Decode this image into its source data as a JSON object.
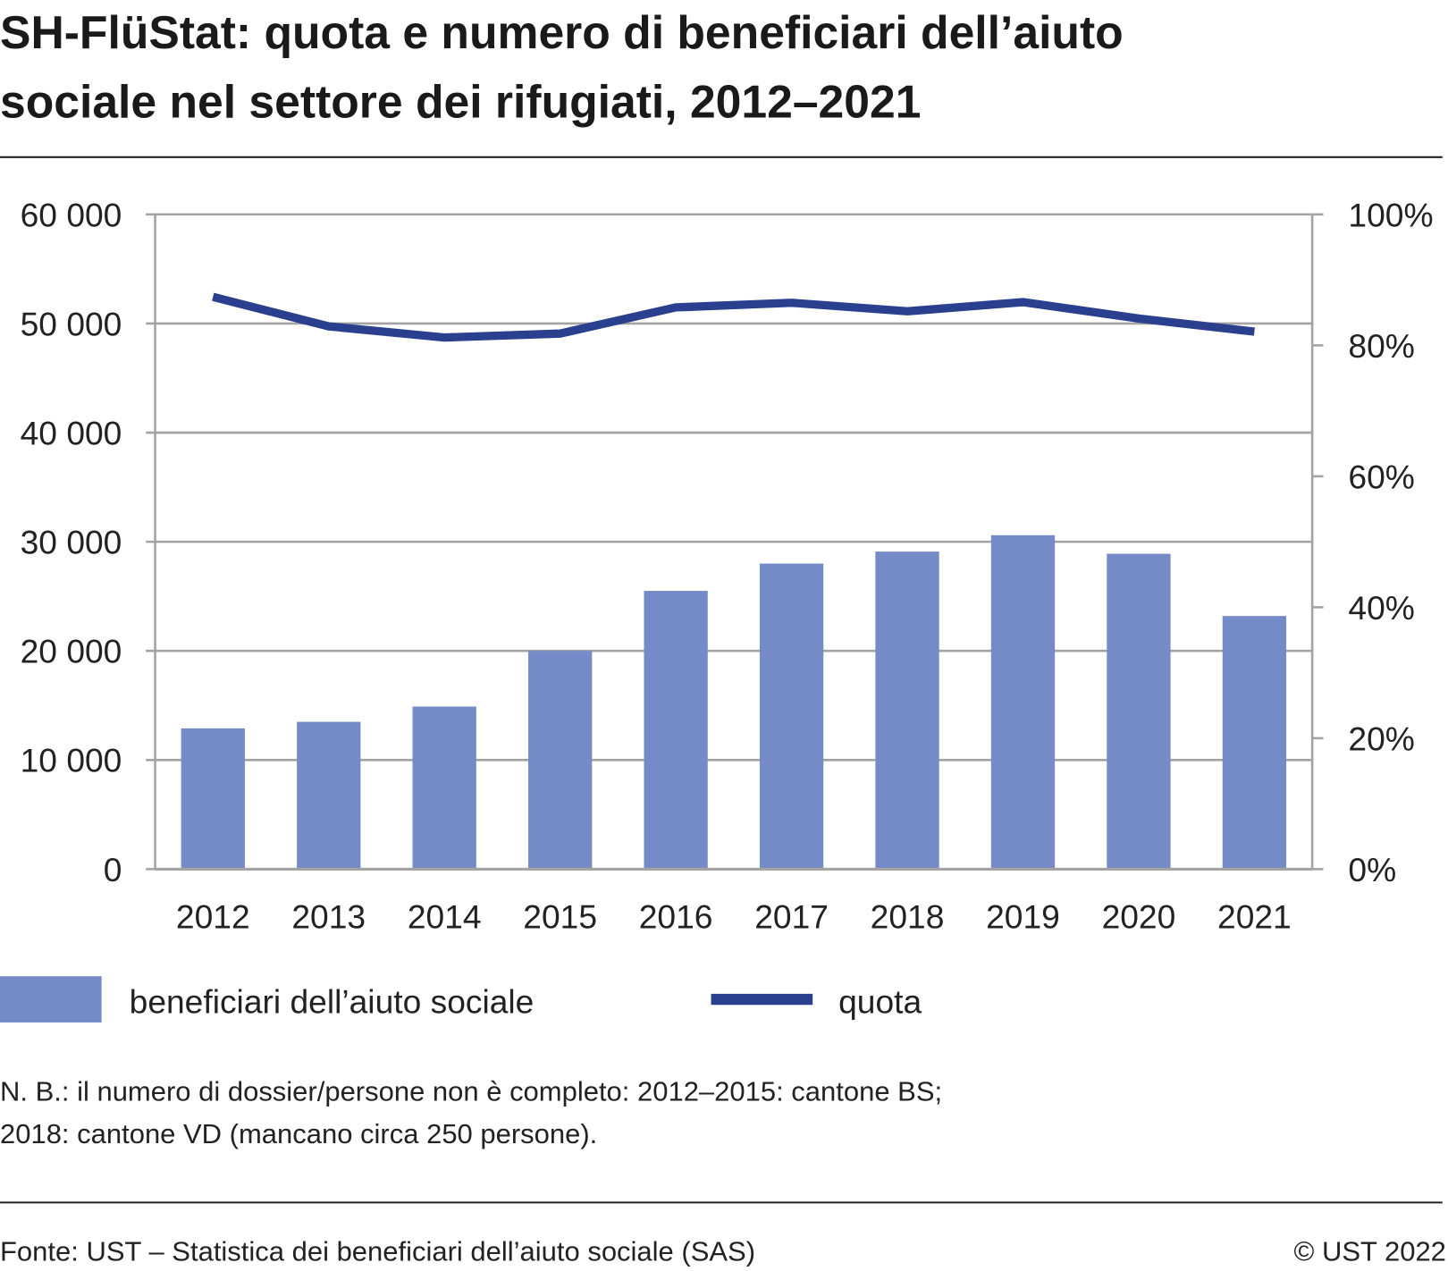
{
  "chart_data": {
    "type": "bar+line",
    "title_lines": [
      "SH-FlüStat: quota e numero di beneficiari dell’aiuto",
      "sociale nel settore dei rifugiati, 2012–2021"
    ],
    "categories": [
      "2012",
      "2013",
      "2014",
      "2015",
      "2016",
      "2017",
      "2018",
      "2019",
      "2020",
      "2021"
    ],
    "series": [
      {
        "name": "beneficiari dell’aiuto sociale",
        "type": "bar",
        "axis": "left",
        "color": "#758bc7",
        "values": [
          12900,
          13500,
          14900,
          20000,
          25500,
          28000,
          29100,
          30600,
          28900,
          23200
        ]
      },
      {
        "name": "quota",
        "type": "line",
        "axis": "right",
        "color": "#2b3f8f",
        "values": [
          87.4,
          82.9,
          81.2,
          81.8,
          85.8,
          86.5,
          85.2,
          86.6,
          84.1,
          82.1
        ]
      }
    ],
    "ylim_left": [
      0,
      60000
    ],
    "yticks_left": [
      "0",
      "10 000",
      "20 000",
      "30 000",
      "40 000",
      "50 000",
      "60 000"
    ],
    "ylim_right": [
      0,
      100
    ],
    "yticks_right": [
      "0%",
      "20%",
      "40%",
      "60%",
      "80%",
      "100%"
    ],
    "grid": true,
    "legend_placement": "bottom"
  },
  "notes": [
    "N. B.: il numero di dossier/persone non è completo: 2012–2015: cantone BS;",
    "2018: cantone VD (mancano circa 250 persone)."
  ],
  "source": "Fonte: UST – Statistica dei beneficiari dell’aiuto sociale (SAS)",
  "copyright": "© UST 2022"
}
